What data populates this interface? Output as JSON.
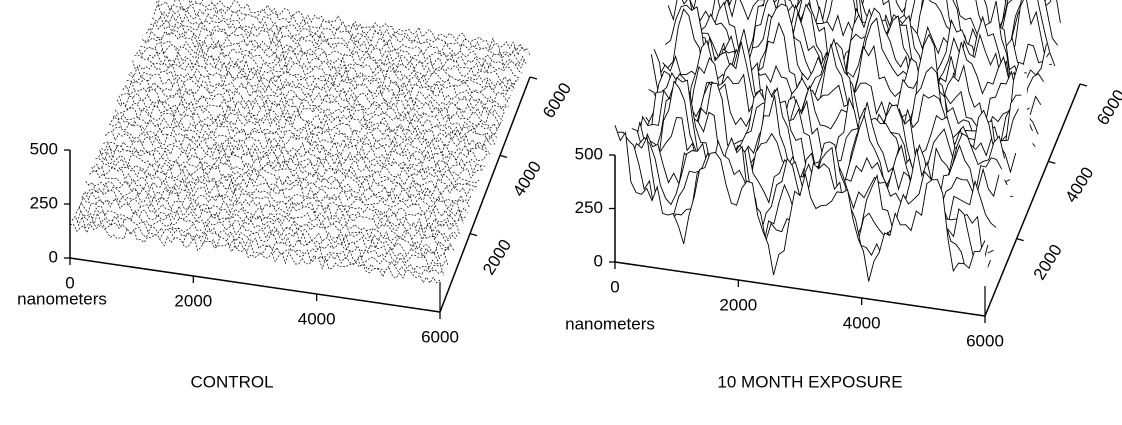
{
  "panels": [
    {
      "caption": "CONTROL",
      "x_label": "nanometers",
      "z_ticks": [
        0,
        250,
        500
      ],
      "x_ticks": [
        0,
        2000,
        4000,
        6000
      ],
      "depth_ticks": [
        2000,
        4000,
        6000
      ]
    },
    {
      "caption": "10 MONTH EXPOSURE",
      "x_label": "nanometers",
      "z_ticks": [
        0,
        250,
        500
      ],
      "x_ticks": [
        0,
        2000,
        4000,
        6000
      ],
      "depth_ticks": [
        2000,
        4000,
        6000
      ]
    }
  ]
}
